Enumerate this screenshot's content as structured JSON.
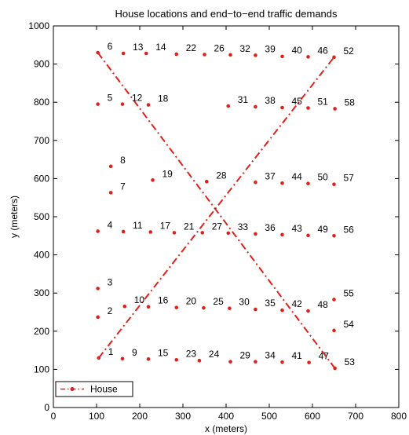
{
  "chart_data": {
    "type": "scatter",
    "title": "House locations and end−to−end traffic demands",
    "xlabel": "x (meters)",
    "ylabel": "y (meters)",
    "xlim": [
      0,
      800
    ],
    "ylim": [
      0,
      1000
    ],
    "xticks": [
      "0",
      "100",
      "200",
      "300",
      "400",
      "500",
      "600",
      "700",
      "800"
    ],
    "yticks": [
      "0",
      "100",
      "200",
      "300",
      "400",
      "500",
      "600",
      "700",
      "800",
      "900",
      "1000"
    ],
    "grid": false,
    "legend": {
      "position": "bottom-left",
      "entries": [
        "House"
      ]
    },
    "colors": {
      "house": "#e0201b",
      "demand": "#e0201b",
      "axis": "#000000"
    },
    "houses": [
      {
        "id": 1,
        "label": "1",
        "x": 105,
        "y": 130
      },
      {
        "id": 2,
        "label": "2",
        "x": 103,
        "y": 237
      },
      {
        "id": 3,
        "label": "3",
        "x": 103,
        "y": 312
      },
      {
        "id": 4,
        "label": "4",
        "x": 103,
        "y": 462
      },
      {
        "id": 5,
        "label": "5",
        "x": 103,
        "y": 795
      },
      {
        "id": 6,
        "label": "6",
        "x": 103,
        "y": 930
      },
      {
        "id": 7,
        "label": "7",
        "x": 133,
        "y": 563
      },
      {
        "id": 8,
        "label": "8",
        "x": 133,
        "y": 632
      },
      {
        "id": 9,
        "label": "9",
        "x": 160,
        "y": 128
      },
      {
        "id": 10,
        "label": "10",
        "x": 165,
        "y": 265
      },
      {
        "id": 11,
        "label": "11",
        "x": 162,
        "y": 461
      },
      {
        "id": 12,
        "label": "12",
        "x": 160,
        "y": 795
      },
      {
        "id": 13,
        "label": "13",
        "x": 162,
        "y": 928
      },
      {
        "id": 14,
        "label": "14",
        "x": 215,
        "y": 928
      },
      {
        "id": 15,
        "label": "15",
        "x": 220,
        "y": 127
      },
      {
        "id": 16,
        "label": "16",
        "x": 220,
        "y": 264
      },
      {
        "id": 17,
        "label": "17",
        "x": 225,
        "y": 460
      },
      {
        "id": 18,
        "label": "18",
        "x": 220,
        "y": 793
      },
      {
        "id": 19,
        "label": "19",
        "x": 230,
        "y": 596
      },
      {
        "id": 20,
        "label": "20",
        "x": 285,
        "y": 262
      },
      {
        "id": 21,
        "label": "21",
        "x": 280,
        "y": 458
      },
      {
        "id": 22,
        "label": "22",
        "x": 285,
        "y": 926
      },
      {
        "id": 23,
        "label": "23",
        "x": 285,
        "y": 125
      },
      {
        "id": 24,
        "label": "24",
        "x": 338,
        "y": 123
      },
      {
        "id": 25,
        "label": "25",
        "x": 348,
        "y": 261
      },
      {
        "id": 26,
        "label": "26",
        "x": 350,
        "y": 925
      },
      {
        "id": 27,
        "label": "27",
        "x": 345,
        "y": 458
      },
      {
        "id": 28,
        "label": "28",
        "x": 355,
        "y": 592
      },
      {
        "id": 29,
        "label": "29",
        "x": 410,
        "y": 120
      },
      {
        "id": 30,
        "label": "30",
        "x": 408,
        "y": 260
      },
      {
        "id": 31,
        "label": "31",
        "x": 405,
        "y": 790
      },
      {
        "id": 32,
        "label": "32",
        "x": 410,
        "y": 924
      },
      {
        "id": 33,
        "label": "33",
        "x": 405,
        "y": 457
      },
      {
        "id": 34,
        "label": "34",
        "x": 468,
        "y": 120
      },
      {
        "id": 35,
        "label": "35",
        "x": 468,
        "y": 257
      },
      {
        "id": 36,
        "label": "36",
        "x": 468,
        "y": 455
      },
      {
        "id": 37,
        "label": "37",
        "x": 468,
        "y": 590
      },
      {
        "id": 38,
        "label": "38",
        "x": 468,
        "y": 788
      },
      {
        "id": 39,
        "label": "39",
        "x": 468,
        "y": 923
      },
      {
        "id": 40,
        "label": "40",
        "x": 530,
        "y": 920
      },
      {
        "id": 41,
        "label": "41",
        "x": 530,
        "y": 119
      },
      {
        "id": 42,
        "label": "42",
        "x": 530,
        "y": 255
      },
      {
        "id": 43,
        "label": "43",
        "x": 530,
        "y": 453
      },
      {
        "id": 44,
        "label": "44",
        "x": 530,
        "y": 588
      },
      {
        "id": 45,
        "label": "45",
        "x": 530,
        "y": 786
      },
      {
        "id": 46,
        "label": "46",
        "x": 590,
        "y": 919
      },
      {
        "id": 47,
        "label": "47",
        "x": 592,
        "y": 118
      },
      {
        "id": 48,
        "label": "48",
        "x": 590,
        "y": 253
      },
      {
        "id": 49,
        "label": "49",
        "x": 590,
        "y": 451
      },
      {
        "id": 50,
        "label": "50",
        "x": 590,
        "y": 587
      },
      {
        "id": 51,
        "label": "51",
        "x": 590,
        "y": 785
      },
      {
        "id": 52,
        "label": "52",
        "x": 650,
        "y": 918
      },
      {
        "id": 53,
        "label": "53",
        "x": 652,
        "y": 103
      },
      {
        "id": 54,
        "label": "54",
        "x": 650,
        "y": 202
      },
      {
        "id": 55,
        "label": "55",
        "x": 650,
        "y": 283
      },
      {
        "id": 56,
        "label": "56",
        "x": 650,
        "y": 450
      },
      {
        "id": 57,
        "label": "57",
        "x": 650,
        "y": 585
      },
      {
        "id": 58,
        "label": "58",
        "x": 652,
        "y": 783
      }
    ],
    "demands": [
      {
        "from": 1,
        "to": 52
      },
      {
        "from": 6,
        "to": 53
      }
    ]
  }
}
